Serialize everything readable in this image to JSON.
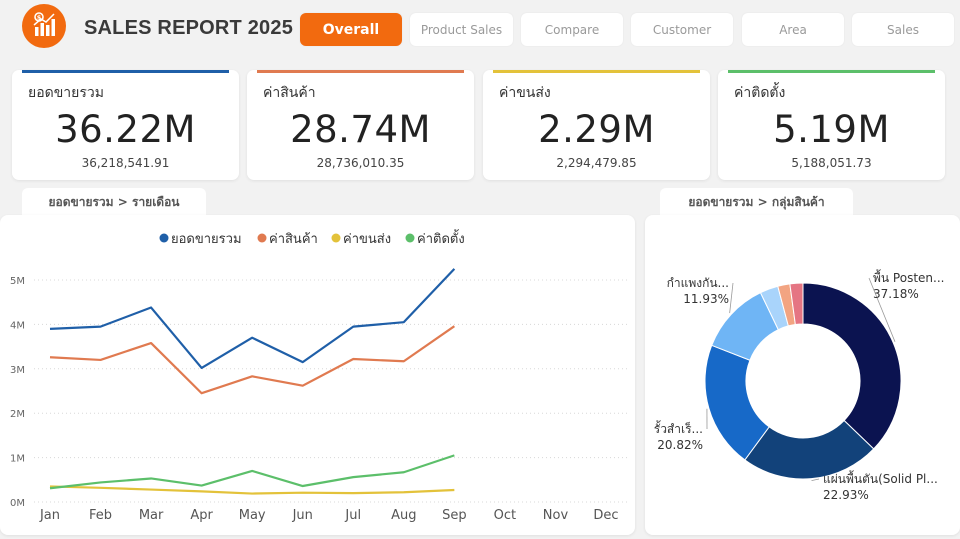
{
  "header": {
    "title": "SALES REPORT 2025",
    "tabs": [
      "Overall",
      "Product Sales",
      "Compare",
      "Customer",
      "Area",
      "Sales"
    ],
    "active_tab": 0,
    "accent": "#f26a0f"
  },
  "kpis": [
    {
      "label": "ยอดขายรวม",
      "value": "36.22M",
      "detail": "36,218,541.91",
      "color": "#1f5fa8"
    },
    {
      "label": "ค่าสินค้า",
      "value": "28.74M",
      "detail": "28,736,010.35",
      "color": "#e07a50"
    },
    {
      "label": "ค่าขนส่ง",
      "value": "2.29M",
      "detail": "2,294,479.85",
      "color": "#e3c23a"
    },
    {
      "label": "ค่าติดตั้ง",
      "value": "5.19M",
      "detail": "5,188,051.73",
      "color": "#5cbf6a"
    }
  ],
  "line_panel": {
    "title": "ยอดขายรวม > รายเดือน"
  },
  "donut_panel": {
    "title": "ยอดขายรวม > กลุ่มสินค้า"
  },
  "chart_data": [
    {
      "type": "line",
      "categories": [
        "Jan",
        "Feb",
        "Mar",
        "Apr",
        "May",
        "Jun",
        "Jul",
        "Aug",
        "Sep",
        "Oct",
        "Nov",
        "Dec"
      ],
      "ylim": [
        0,
        5000000
      ],
      "y_ticks": [
        "0M",
        "1M",
        "2M",
        "3M",
        "4M",
        "5M"
      ],
      "grid": true,
      "legend": "top",
      "series": [
        {
          "name": "ยอดขายรวม",
          "color": "#1f5fa8",
          "values": [
            3900000,
            3950000,
            4380000,
            3020000,
            3700000,
            3150000,
            3950000,
            4050000,
            5250000,
            null,
            null,
            null
          ]
        },
        {
          "name": "ค่าสินค้า",
          "color": "#e07a50",
          "values": [
            3260000,
            3200000,
            3580000,
            2450000,
            2830000,
            2620000,
            3220000,
            3170000,
            3960000,
            null,
            null,
            null
          ]
        },
        {
          "name": "ค่าขนส่ง",
          "color": "#e3c23a",
          "values": [
            350000,
            320000,
            280000,
            240000,
            190000,
            210000,
            200000,
            220000,
            270000,
            null,
            null,
            null
          ]
        },
        {
          "name": "ค่าติดตั้ง",
          "color": "#5cbf6a",
          "values": [
            310000,
            440000,
            530000,
            370000,
            700000,
            360000,
            560000,
            670000,
            1050000,
            null,
            null,
            null
          ]
        }
      ]
    },
    {
      "type": "pie",
      "variant": "donut",
      "slices": [
        {
          "label": "พื้น Posten...",
          "value": 37.18,
          "percent_label": "37.18%",
          "color": "#0b1350"
        },
        {
          "label": "แผ่นพื้นตัน(Solid Pl...",
          "value": 22.93,
          "percent_label": "22.93%",
          "color": "#12427a"
        },
        {
          "label": "รั้วสำเร็...",
          "value": 20.82,
          "percent_label": "20.82%",
          "color": "#1769c8"
        },
        {
          "label": "กำแพงกัน...",
          "value": 11.93,
          "percent_label": "11.93%",
          "color": "#6fb5f5"
        },
        {
          "label": "",
          "value": 3.0,
          "percent_label": "",
          "color": "#a9d4fb"
        },
        {
          "label": "",
          "value": 2.0,
          "percent_label": "",
          "color": "#f2a482"
        },
        {
          "label": "",
          "value": 2.14,
          "percent_label": "",
          "color": "#e57583"
        }
      ]
    }
  ]
}
